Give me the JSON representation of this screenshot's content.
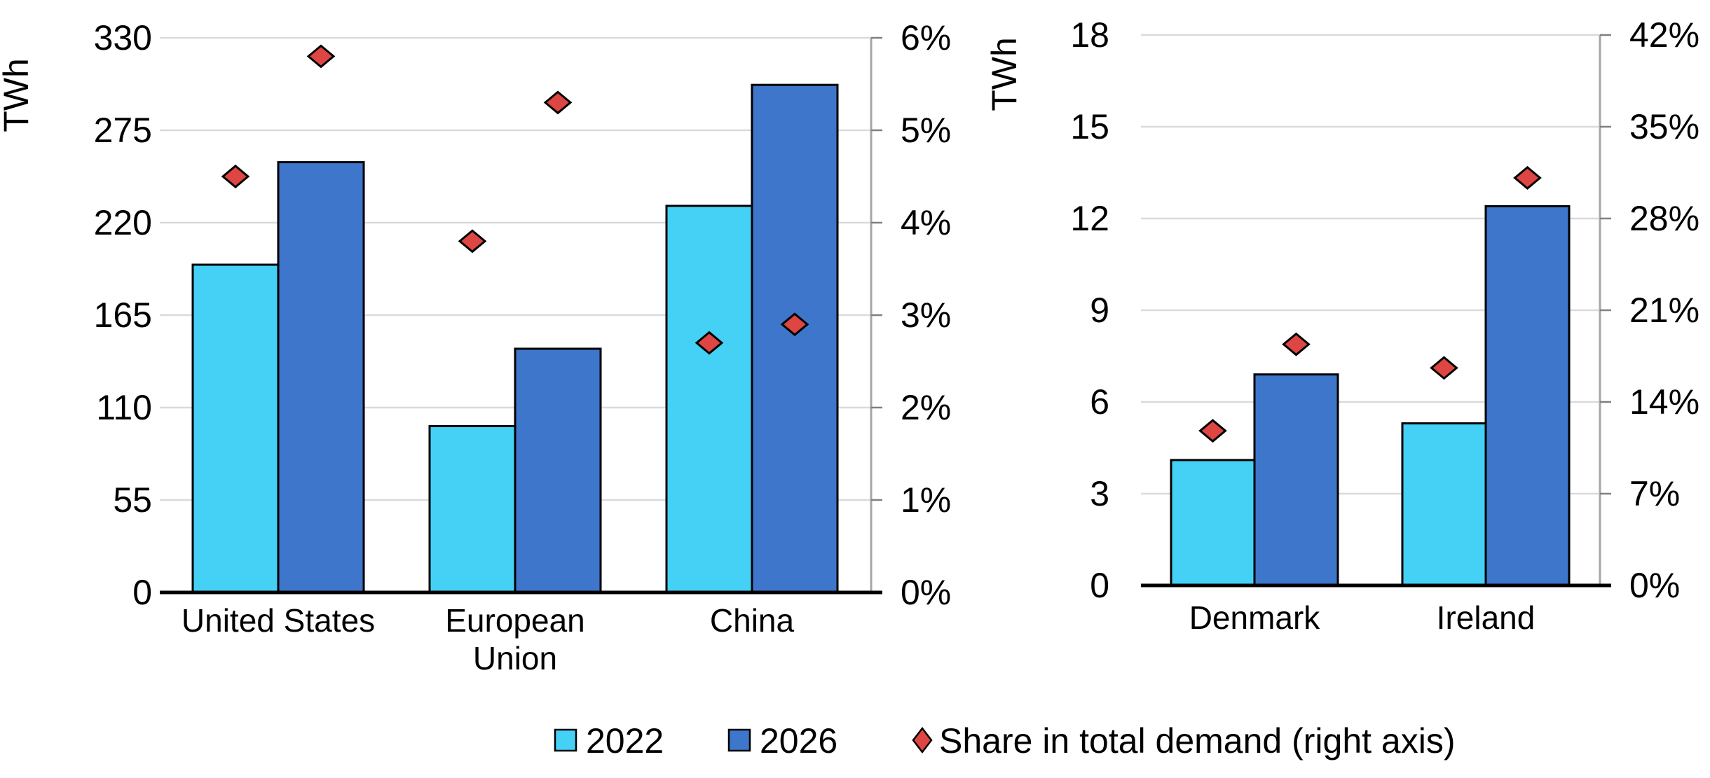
{
  "figure": {
    "description": "Two combo bar and diamond-marker charts of data centre electricity consumption with share of total demand on secondary axes"
  },
  "chart_data": [
    {
      "type": "bar",
      "subtype": "bar-with-scatter-diamonds",
      "ylabel": "TWh",
      "categories": [
        "United States",
        "European Union",
        "China"
      ],
      "category_label_lines": [
        [
          "United States"
        ],
        [
          "European",
          "Union"
        ],
        [
          "China"
        ]
      ],
      "series": [
        {
          "name": "2022",
          "color": "#45D1F5",
          "values": [
            195,
            99,
            230
          ]
        },
        {
          "name": "2026",
          "color": "#3E76CB",
          "values": [
            256,
            145,
            302
          ]
        }
      ],
      "scatter": {
        "name": "Share in total demand (right axis)",
        "color": "#DE4643",
        "values_pct": [
          [
            4.5,
            3.8,
            2.7
          ],
          [
            5.8,
            5.3,
            2.9
          ]
        ]
      },
      "y_left": {
        "min": 0,
        "max": 330,
        "step": 55,
        "tick_labels": [
          "0",
          "55",
          "110",
          "165",
          "220",
          "275",
          "330"
        ]
      },
      "y_right": {
        "min": 0,
        "max": 6,
        "step": 1,
        "tick_labels": [
          "0%",
          "1%",
          "2%",
          "3%",
          "4%",
          "5%",
          "6%"
        ]
      },
      "grid": true,
      "legend_position": "bottom"
    },
    {
      "type": "bar",
      "subtype": "bar-with-scatter-diamonds",
      "ylabel": "TWh",
      "categories": [
        "Denmark",
        "Ireland"
      ],
      "category_label_lines": [
        [
          "Denmark"
        ],
        [
          "Ireland"
        ]
      ],
      "series": [
        {
          "name": "2022",
          "color": "#45D1F5",
          "values": [
            4.1,
            5.3
          ]
        },
        {
          "name": "2026",
          "color": "#3E76CB",
          "values": [
            6.9,
            12.4
          ]
        }
      ],
      "scatter": {
        "name": "Share in total demand (right axis)",
        "color": "#DE4643",
        "values_pct": [
          [
            11.8,
            16.6
          ],
          [
            18.4,
            31.1
          ]
        ]
      },
      "y_left": {
        "min": 0,
        "max": 18,
        "step": 3,
        "tick_labels": [
          "0",
          "3",
          "6",
          "9",
          "12",
          "15",
          "18"
        ]
      },
      "y_right": {
        "min": 0,
        "max": 42,
        "step": 7,
        "tick_labels": [
          "0%",
          "7%",
          "14%",
          "21%",
          "28%",
          "35%",
          "42%"
        ]
      },
      "grid": true,
      "legend_position": "bottom"
    }
  ],
  "legend": {
    "items": [
      {
        "label": "2022",
        "marker": "square",
        "color": "#45D1F5"
      },
      {
        "label": "2026",
        "marker": "square",
        "color": "#3E76CB"
      },
      {
        "label": "Share in total demand (right axis)",
        "marker": "diamond",
        "color": "#DE4643"
      }
    ]
  },
  "colors": {
    "bar_2022": "#45D1F5",
    "bar_2026": "#3E76CB",
    "diamond": "#DE4643",
    "outline": "#000000",
    "gridline": "#DADADA",
    "secondary_axis_line": "#A6A6A6",
    "tick_mark": "#7F7F7F",
    "text": "#000000",
    "background": "#FFFFFF"
  }
}
